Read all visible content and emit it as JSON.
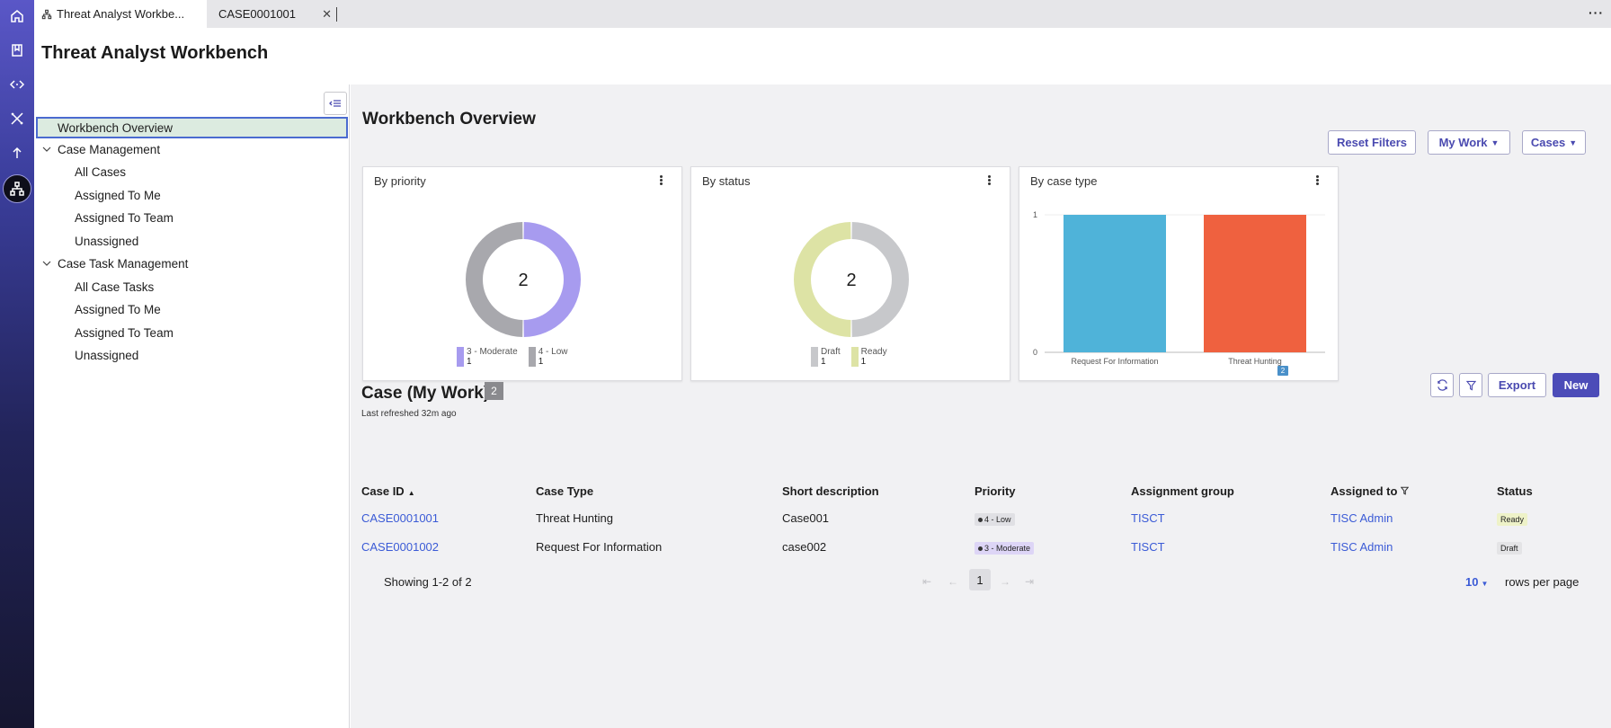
{
  "tabs": [
    {
      "label": "Threat Analyst Workbe..."
    },
    {
      "label": "CASE0001001"
    }
  ],
  "header": {
    "title": "Threat Analyst Workbench"
  },
  "sidebar": {
    "items": [
      {
        "label": "Workbench Overview"
      },
      {
        "label": "Case Management"
      },
      {
        "label": "All Cases"
      },
      {
        "label": "Assigned To Me"
      },
      {
        "label": "Assigned To Team"
      },
      {
        "label": "Unassigned"
      },
      {
        "label": "Case Task Management"
      },
      {
        "label": "All Case Tasks"
      },
      {
        "label": "Assigned To Me"
      },
      {
        "label": "Assigned To Team"
      },
      {
        "label": "Unassigned"
      }
    ]
  },
  "overview": {
    "title": "Workbench Overview",
    "reset_filters": "Reset Filters",
    "my_work": "My Work",
    "cases": "Cases"
  },
  "cards": {
    "priority": {
      "title": "By priority",
      "total": "2",
      "legend": [
        {
          "label": "3 - Moderate",
          "count": "1"
        },
        {
          "label": "4 - Low",
          "count": "1"
        }
      ]
    },
    "status": {
      "title": "By status",
      "total": "2",
      "legend": [
        {
          "label": "Draft",
          "count": "1"
        },
        {
          "label": "Ready",
          "count": "1"
        }
      ]
    },
    "type": {
      "title": "By case type"
    }
  },
  "chart_data": [
    {
      "type": "pie",
      "title": "By priority",
      "categories": [
        "3 - Moderate",
        "4 - Low"
      ],
      "values": [
        1,
        1
      ],
      "colors": [
        "#a79bef",
        "#a8a8ad"
      ]
    },
    {
      "type": "pie",
      "title": "By status",
      "categories": [
        "Draft",
        "Ready"
      ],
      "values": [
        1,
        1
      ],
      "colors": [
        "#c7c8cb",
        "#dde3a5"
      ]
    },
    {
      "type": "bar",
      "title": "By case type",
      "categories": [
        "Request For Information",
        "Threat Hunting"
      ],
      "values": [
        1,
        1
      ],
      "colors": [
        "#4fb3d9",
        "#ef613f"
      ],
      "ylim": [
        0,
        1
      ],
      "yticks": [
        "0",
        "1"
      ]
    }
  ],
  "cases": {
    "title": "Case (My Work)",
    "count": "2",
    "refreshed": "Last refreshed 32m ago",
    "export": "Export",
    "new": "New",
    "filter_count": "2",
    "columns": [
      "Case ID",
      "Case Type",
      "Short description",
      "Priority",
      "Assignment group",
      "Assigned to",
      "Status"
    ],
    "rows": [
      {
        "id": "CASE0001001",
        "type": "Threat Hunting",
        "desc": "Case001",
        "priority": "4 - Low",
        "group": "TISCT",
        "assigned": "TISC Admin",
        "status": "Ready"
      },
      {
        "id": "CASE0001002",
        "type": "Request For Information",
        "desc": "case002",
        "priority": "3 - Moderate",
        "group": "TISCT",
        "assigned": "TISC Admin",
        "status": "Draft"
      }
    ],
    "summary": "Showing 1-2 of 2",
    "page": "1",
    "rows_per_page": "10",
    "rows_per_page_label": "rows per page"
  }
}
